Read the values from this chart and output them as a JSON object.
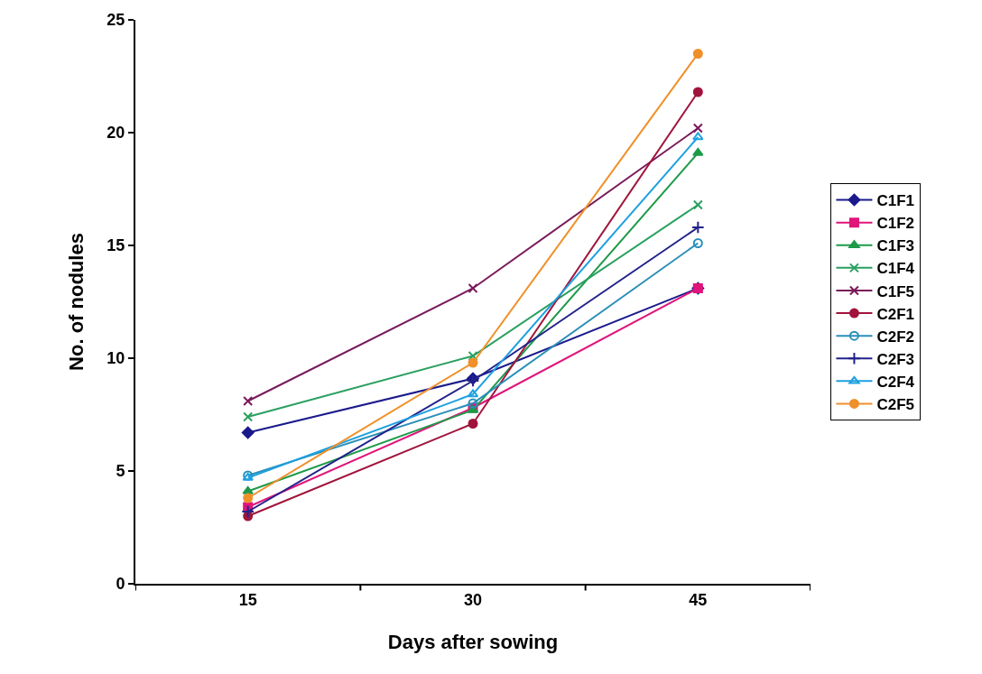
{
  "chart_data": {
    "type": "line",
    "xlabel": "Days after sowing",
    "ylabel": "No. of nodules",
    "categories": [
      "15",
      "30",
      "45"
    ],
    "series": [
      {
        "name": "C1F1",
        "color": "#1a1a8c",
        "marker": "diamond",
        "values": [
          6.7,
          9.1,
          13.1
        ]
      },
      {
        "name": "C1F2",
        "color": "#e0147a",
        "marker": "square",
        "values": [
          3.4,
          7.8,
          13.1
        ]
      },
      {
        "name": "C1F3",
        "color": "#1e9a4a",
        "marker": "triangle",
        "values": [
          4.1,
          7.7,
          19.1
        ]
      },
      {
        "name": "C1F4",
        "color": "#2aa060",
        "marker": "x",
        "values": [
          7.4,
          10.1,
          16.8
        ]
      },
      {
        "name": "C1F5",
        "color": "#7a1a5a",
        "marker": "x",
        "values": [
          8.1,
          13.1,
          20.2
        ]
      },
      {
        "name": "C2F1",
        "color": "#a0143c",
        "marker": "circle",
        "values": [
          3.0,
          7.1,
          21.8
        ]
      },
      {
        "name": "C2F2",
        "color": "#2a8fb8",
        "marker": "circle-open",
        "values": [
          4.8,
          8.0,
          15.1
        ]
      },
      {
        "name": "C2F3",
        "color": "#22228a",
        "marker": "plus",
        "values": [
          3.2,
          9.0,
          15.8
        ]
      },
      {
        "name": "C2F4",
        "color": "#1ea0e0",
        "marker": "triangle-open",
        "values": [
          4.7,
          8.4,
          19.8
        ]
      },
      {
        "name": "C2F5",
        "color": "#f0902a",
        "marker": "circle",
        "values": [
          3.8,
          9.8,
          23.5
        ]
      }
    ],
    "ylim": [
      0,
      25
    ],
    "yticks": [
      0,
      5,
      10,
      15,
      20,
      25
    ],
    "legend": "right",
    "line_style": "solid"
  }
}
